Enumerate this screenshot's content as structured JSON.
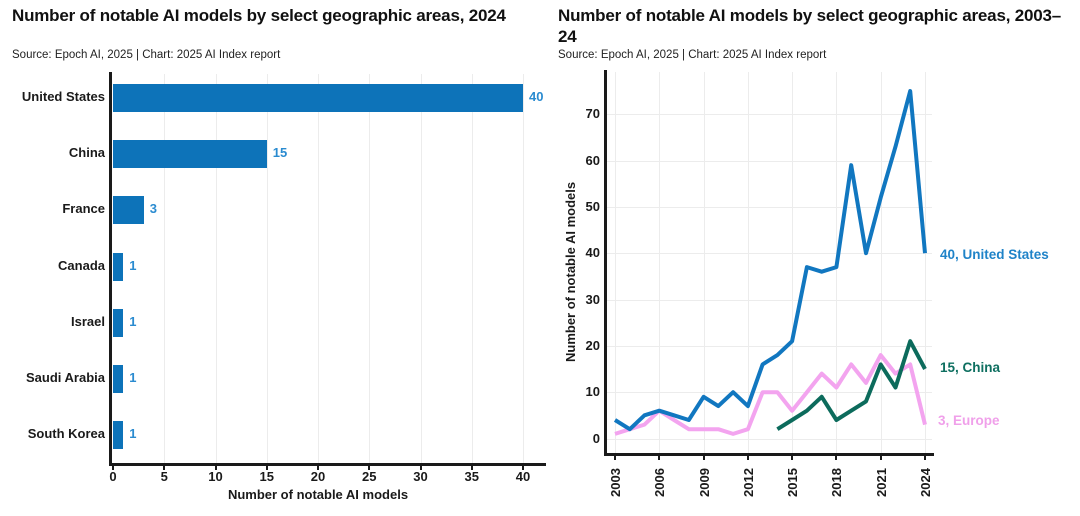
{
  "chart_data": [
    {
      "type": "bar",
      "orientation": "horizontal",
      "title": "Number of notable AI models by select geographic areas, 2024",
      "source": "Source: Epoch AI, 2025 | Chart: 2025 AI Index report",
      "categories": [
        "United States",
        "China",
        "France",
        "Canada",
        "Israel",
        "Saudi Arabia",
        "South Korea"
      ],
      "values": [
        40,
        15,
        3,
        1,
        1,
        1,
        1
      ],
      "xlabel": "Number of notable AI models",
      "xticks": [
        0,
        5,
        10,
        15,
        20,
        25,
        30,
        35,
        40
      ],
      "xlim": [
        0,
        42
      ],
      "grid": "vertical",
      "bar_color": "#0d73b9",
      "value_label_color": "#2a8bd0"
    },
    {
      "type": "line",
      "title": "Number of notable AI models by select geographic areas, 2003–24",
      "source": "Source: Epoch AI, 2025 | Chart: 2025 AI Index report",
      "ylabel": "Number of notable AI models",
      "xticks": [
        2003,
        2006,
        2009,
        2012,
        2015,
        2018,
        2021,
        2024
      ],
      "yticks": [
        0,
        10,
        20,
        30,
        40,
        50,
        60,
        70
      ],
      "xlim": [
        2003,
        2024
      ],
      "ylim": [
        0,
        79
      ],
      "grid": "both",
      "legend_position": "right-end-labels",
      "series": [
        {
          "name": "United States",
          "label": "40, United States",
          "color": "#1177c0",
          "label_color": "#1f83c8",
          "years": [
            2003,
            2004,
            2005,
            2006,
            2007,
            2008,
            2009,
            2010,
            2011,
            2012,
            2013,
            2014,
            2015,
            2016,
            2017,
            2018,
            2019,
            2020,
            2021,
            2022,
            2023,
            2024
          ],
          "values": [
            4,
            2,
            5,
            6,
            5,
            4,
            9,
            7,
            10,
            7,
            16,
            18,
            21,
            37,
            36,
            37,
            59,
            40,
            52,
            63,
            75,
            40
          ]
        },
        {
          "name": "China",
          "label": "15, China",
          "color": "#0c6b5c",
          "label_color": "#0e6f60",
          "years": [
            2014,
            2015,
            2016,
            2017,
            2018,
            2019,
            2020,
            2021,
            2022,
            2023,
            2024
          ],
          "values": [
            2,
            4,
            6,
            9,
            4,
            6,
            8,
            16,
            11,
            21,
            15
          ]
        },
        {
          "name": "Europe",
          "label": "3, Europe",
          "color": "#f3a4ef",
          "label_color": "#f0a0ea",
          "years": [
            2003,
            2004,
            2005,
            2006,
            2007,
            2008,
            2009,
            2010,
            2011,
            2012,
            2013,
            2014,
            2015,
            2016,
            2017,
            2018,
            2019,
            2020,
            2021,
            2022,
            2023,
            2024
          ],
          "values": [
            1,
            2,
            3,
            6,
            4,
            2,
            2,
            2,
            1,
            2,
            10,
            10,
            6,
            10,
            14,
            11,
            16,
            12,
            18,
            14,
            16,
            3
          ]
        }
      ]
    }
  ]
}
